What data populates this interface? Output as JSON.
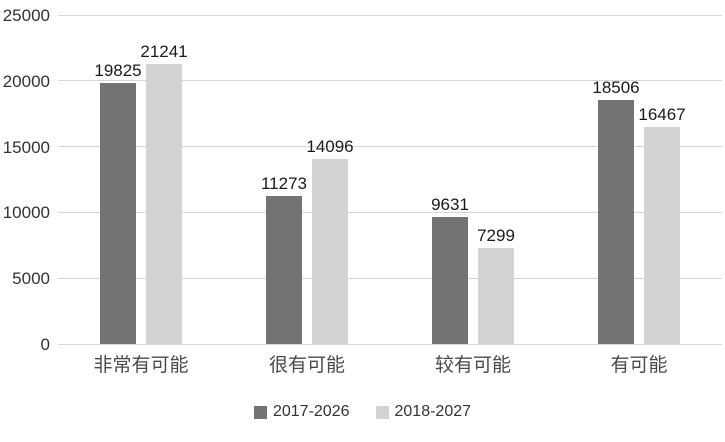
{
  "chart_data": {
    "type": "bar",
    "title": "",
    "xlabel": "",
    "ylabel": "",
    "categories": [
      "非常有可能",
      "很有可能",
      "较有可能",
      "有可能"
    ],
    "series": [
      {
        "name": "2017-2026",
        "color": "#737373",
        "values": [
          19825,
          11273,
          9631,
          18506
        ]
      },
      {
        "name": "2018-2027",
        "color": "#d3d3d3",
        "values": [
          21241,
          14096,
          7299,
          16467
        ]
      }
    ],
    "ylim": [
      0,
      25000
    ],
    "yticks": [
      0,
      5000,
      10000,
      15000,
      20000,
      25000
    ],
    "grid": true,
    "data_labels": true,
    "legend_position": "bottom"
  },
  "colors": {
    "gridline": "#d6d6d6",
    "axis_text": "#333333",
    "data_label_text": "#1a1a1a"
  }
}
